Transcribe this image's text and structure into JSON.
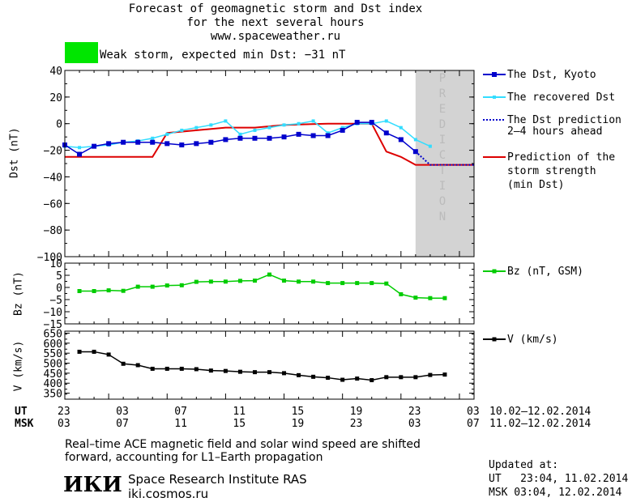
{
  "header": {
    "line1": "Forecast of geomagnetic storm and Dst index",
    "line2": "for the next several hours",
    "line3": "www.spaceweather.ru",
    "status_text": "Weak storm, expected min Dst: −31 nT",
    "status_color": "#00e600"
  },
  "colors": {
    "dst_kyoto": "#0000cc",
    "dst_recovered": "#33ddff",
    "prediction_line": "#0000cc",
    "storm_strength": "#dd0000",
    "bz": "#00cc00",
    "v": "#000000",
    "prediction_band": "#d3d3d3"
  },
  "legend": {
    "dst_kyoto": "The Dst, Kyoto",
    "dst_recovered": "The recovered Dst",
    "dst_prediction": [
      "The Dst prediction",
      "2–4 hours ahead"
    ],
    "storm_strength": [
      "Prediction of the",
      "storm strength",
      "(min Dst)"
    ],
    "bz": "Bz (nT, GSM)",
    "v": "V (km/s)"
  },
  "prediction_label": "PREDICTION",
  "time_axis": {
    "ut_label": "UT",
    "msk_label": "MSK",
    "ut_ticks": [
      "23",
      "03",
      "07",
      "11",
      "15",
      "19",
      "23",
      "03"
    ],
    "msk_ticks": [
      "03",
      "07",
      "11",
      "15",
      "19",
      "23",
      "03",
      "07"
    ],
    "ut_range": "10.02‒12.02.2014",
    "msk_range": "11.02‒12.02.2014"
  },
  "footer": {
    "note_line1": "Real–time ACE magnetic field and solar wind speed are shifted",
    "note_line2": "forward, accounting for L1–Earth propagation",
    "logo": "ИКИ",
    "institute": "Space Research Institute RAS",
    "site": "iki.cosmos.ru",
    "updated_label": "Updated at:",
    "updated_ut": "UT   23:04, 11.02.2014",
    "updated_msk": "MSK 03:04, 12.02.2014"
  },
  "chart_data": [
    {
      "type": "line",
      "ylabel": "Dst (nT)",
      "ylim": [
        -100,
        40
      ],
      "yticks": [
        40,
        20,
        0,
        -20,
        -40,
        -60,
        -80,
        -100
      ],
      "xlim_hours": [
        0,
        28
      ],
      "prediction_range_hours": [
        24,
        28
      ],
      "series": [
        {
          "name": "The Dst, Kyoto",
          "x": [
            0,
            1,
            2,
            3,
            4,
            5,
            6,
            7,
            8,
            9,
            10,
            11,
            12,
            13,
            14,
            15,
            16,
            17,
            18,
            19,
            20,
            21,
            22,
            23,
            24
          ],
          "y": [
            -16,
            -23,
            -17,
            -15,
            -14,
            -14,
            -14,
            -15,
            -16,
            -15,
            -14,
            -12,
            -11,
            -11,
            -11,
            -10,
            -8,
            -9,
            -9,
            -5,
            1,
            1,
            -7,
            -12,
            -21
          ]
        },
        {
          "name": "The recovered Dst",
          "x": [
            0,
            1,
            2,
            3,
            4,
            5,
            6,
            7,
            8,
            9,
            10,
            11,
            12,
            13,
            14,
            15,
            16,
            17,
            18,
            19,
            20,
            21,
            22,
            23,
            24,
            25
          ],
          "y": [
            -17,
            -18,
            -17,
            -16,
            -14,
            -13,
            -11,
            -8,
            -5,
            -3,
            -1,
            2,
            -8,
            -5,
            -3,
            -1,
            0,
            2,
            -7,
            -3,
            0,
            0,
            2,
            -3,
            -12,
            -17
          ]
        },
        {
          "name": "The Dst prediction 2–4 hours ahead",
          "x": [
            24,
            25,
            26,
            27,
            28
          ],
          "y": [
            -21,
            -31,
            -31,
            -31,
            -31
          ]
        },
        {
          "name": "Prediction of the storm strength (min Dst)",
          "x": [
            0,
            6,
            7,
            11,
            13,
            15,
            18,
            21,
            22,
            23,
            24,
            28
          ],
          "y": [
            -25,
            -25,
            -7,
            -3,
            -3,
            -1,
            0,
            0,
            -21,
            -25,
            -31,
            -31
          ]
        }
      ]
    },
    {
      "type": "line",
      "ylabel": "Bz (nT)",
      "ylim": [
        -15,
        10
      ],
      "yticks": [
        10,
        5,
        0,
        -5,
        -10,
        -15
      ],
      "series": [
        {
          "name": "Bz (nT, GSM)",
          "x": [
            1,
            2,
            3,
            4,
            5,
            6,
            7,
            8,
            9,
            10,
            11,
            12,
            13,
            14,
            15,
            16,
            17,
            18,
            19,
            20,
            21,
            22,
            23,
            24,
            25,
            26
          ],
          "y": [
            -1.5,
            -1.5,
            -1.2,
            -1.4,
            0.3,
            0.3,
            0.8,
            0.9,
            2.3,
            2.4,
            2.4,
            2.7,
            2.8,
            5.3,
            2.8,
            2.4,
            2.4,
            1.8,
            1.8,
            1.8,
            1.8,
            1.6,
            -2.8,
            -4.2,
            -4.4,
            -4.4
          ]
        }
      ]
    },
    {
      "type": "line",
      "ylabel": "V (km/s)",
      "ylim": [
        320,
        660
      ],
      "yticks": [
        650,
        600,
        550,
        500,
        450,
        400,
        350
      ],
      "series": [
        {
          "name": "V (km/s)",
          "x": [
            1,
            2,
            3,
            4,
            5,
            6,
            7,
            8,
            9,
            10,
            11,
            12,
            13,
            14,
            15,
            16,
            17,
            18,
            19,
            20,
            21,
            22,
            23,
            24,
            25,
            26
          ],
          "y": [
            557,
            557,
            543,
            497,
            490,
            472,
            472,
            472,
            470,
            463,
            461,
            457,
            455,
            455,
            450,
            440,
            432,
            427,
            417,
            423,
            415,
            430,
            430,
            430,
            441,
            443
          ]
        }
      ]
    }
  ]
}
